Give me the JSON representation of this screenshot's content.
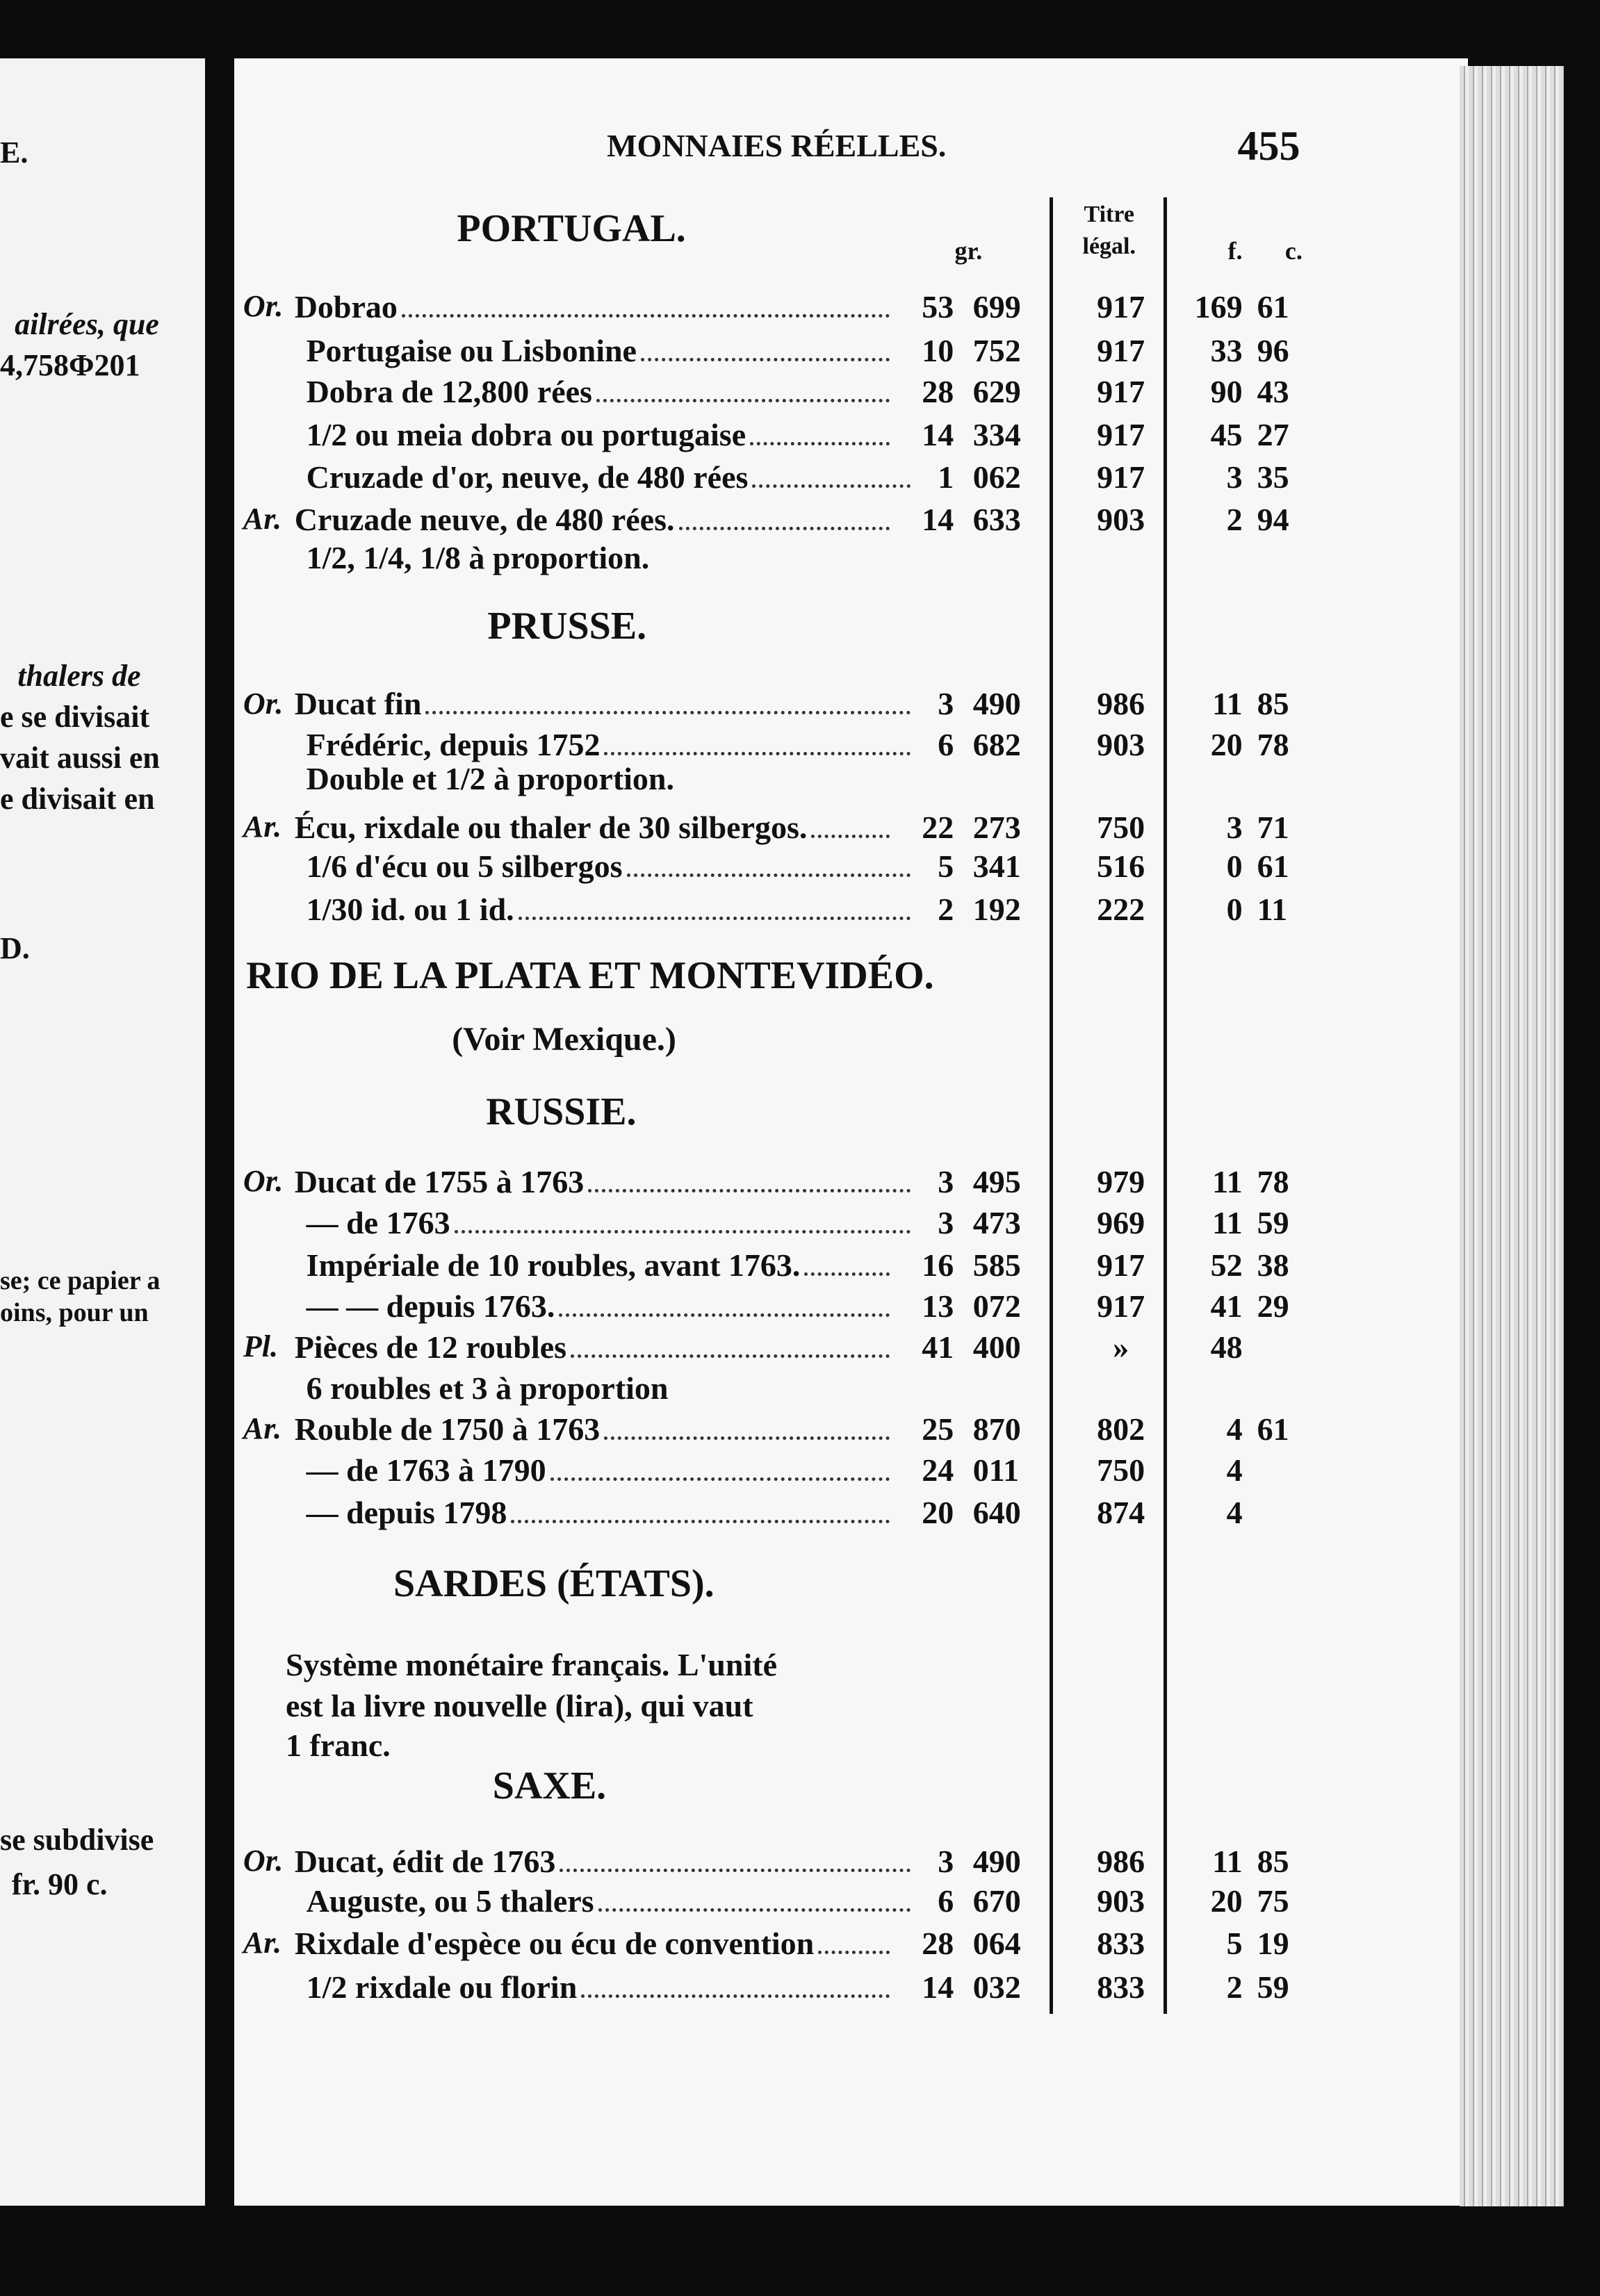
{
  "left_page": [
    "E.",
    "ailrées, que",
    "4,758Φ201",
    "thalers de",
    "e se divisait",
    "vait aussi en",
    "e divisait en",
    "D.",
    "se; ce papier a",
    "oins, pour un",
    "se subdivise",
    "fr. 90 c."
  ],
  "header": {
    "title": "MONNAIES RÉELLES.",
    "page_number": "455"
  },
  "columns": {
    "gr": "gr.",
    "titre_line1": "Titre",
    "titre_line2": "légal.",
    "f": "f.",
    "c": "c."
  },
  "sections": [
    {
      "title": "PORTUGAL.",
      "rows": [
        {
          "metal": "Or.",
          "name": "Dobrao",
          "gr": "53",
          "dec": "699",
          "titre": "917",
          "f": "169",
          "c": "61"
        },
        {
          "name": "Portugaise ou Lisbonine",
          "gr": "10",
          "dec": "752",
          "titre": "917",
          "f": "33",
          "c": "96"
        },
        {
          "name": "Dobra de 12,800 rées",
          "gr": "28",
          "dec": "629",
          "titre": "917",
          "f": "90",
          "c": "43"
        },
        {
          "name": "1/2 ou meia dobra ou portugaise",
          "gr": "14",
          "dec": "334",
          "titre": "917",
          "f": "45",
          "c": "27"
        },
        {
          "name": "Cruzade d'or, neuve, de 480 rées",
          "gr": "1",
          "dec": "062",
          "titre": "917",
          "f": "3",
          "c": "35"
        },
        {
          "metal": "Ar.",
          "name": "Cruzade neuve, de 480 rées.",
          "gr": "14",
          "dec": "633",
          "titre": "903",
          "f": "2",
          "c": "94"
        },
        {
          "name": "1/2, 1/4, 1/8 à proportion."
        }
      ]
    },
    {
      "title": "PRUSSE.",
      "rows": [
        {
          "metal": "Or.",
          "name": "Ducat fin",
          "gr": "3",
          "dec": "490",
          "titre": "986",
          "f": "11",
          "c": "85"
        },
        {
          "name": "Frédéric, depuis 1752",
          "gr": "6",
          "dec": "682",
          "titre": "903",
          "f": "20",
          "c": "78"
        },
        {
          "name": "Double et 1/2 à proportion."
        },
        {
          "metal": "Ar.",
          "name": "Écu, rixdale ou thaler de 30 silbergos.",
          "gr": "22",
          "dec": "273",
          "titre": "750",
          "f": "3",
          "c": "71"
        },
        {
          "name": "1/6 d'écu ou 5 silbergos",
          "gr": "5",
          "dec": "341",
          "titre": "516",
          "f": "0",
          "c": "61"
        },
        {
          "name": "1/30 id. ou 1 id.",
          "gr": "2",
          "dec": "192",
          "titre": "222",
          "f": "0",
          "c": "11"
        }
      ]
    },
    {
      "title": "RIO DE LA PLATA ET MONTEVIDÉO.",
      "note": "(Voir Mexique.)"
    },
    {
      "title": "RUSSIE.",
      "rows": [
        {
          "metal": "Or.",
          "name": "Ducat de 1755 à 1763",
          "gr": "3",
          "dec": "495",
          "titre": "979",
          "f": "11",
          "c": "78"
        },
        {
          "name": "— de 1763",
          "gr": "3",
          "dec": "473",
          "titre": "969",
          "f": "11",
          "c": "59"
        },
        {
          "name": "Impériale de 10 roubles, avant 1763.",
          "gr": "16",
          "dec": "585",
          "titre": "917",
          "f": "52",
          "c": "38"
        },
        {
          "name": "— — depuis 1763.",
          "gr": "13",
          "dec": "072",
          "titre": "917",
          "f": "41",
          "c": "29"
        },
        {
          "metal": "Pl.",
          "name": "Pièces de 12 roubles",
          "gr": "41",
          "dec": "400",
          "titre": "»",
          "f": "48"
        },
        {
          "name": "6 roubles et 3 à proportion"
        },
        {
          "metal": "Ar.",
          "name": "Rouble de 1750 à 1763",
          "gr": "25",
          "dec": "870",
          "titre": "802",
          "f": "4",
          "c": "61"
        },
        {
          "name": "— de 1763 à 1790",
          "gr": "24",
          "dec": "011",
          "titre": "750",
          "f": "4"
        },
        {
          "name": "— depuis 1798",
          "gr": "20",
          "dec": "640",
          "titre": "874",
          "f": "4"
        }
      ]
    },
    {
      "title": "SARDES (ÉTATS).",
      "text": [
        "Système monétaire français. L'unité",
        "est la livre nouvelle (lira), qui vaut",
        "1 franc."
      ]
    },
    {
      "title": "SAXE.",
      "rows": [
        {
          "metal": "Or.",
          "name": "Ducat, édit de 1763",
          "gr": "3",
          "dec": "490",
          "titre": "986",
          "f": "11",
          "c": "85"
        },
        {
          "name": "Auguste, ou 5 thalers",
          "gr": "6",
          "dec": "670",
          "titre": "903",
          "f": "20",
          "c": "75"
        },
        {
          "metal": "Ar.",
          "name": "Rixdale d'espèce ou écu de convention",
          "gr": "28",
          "dec": "064",
          "titre": "833",
          "f": "5",
          "c": "19"
        },
        {
          "name": "1/2 rixdale ou florin",
          "gr": "14",
          "dec": "032",
          "titre": "833",
          "f": "2",
          "c": "59"
        }
      ]
    }
  ]
}
